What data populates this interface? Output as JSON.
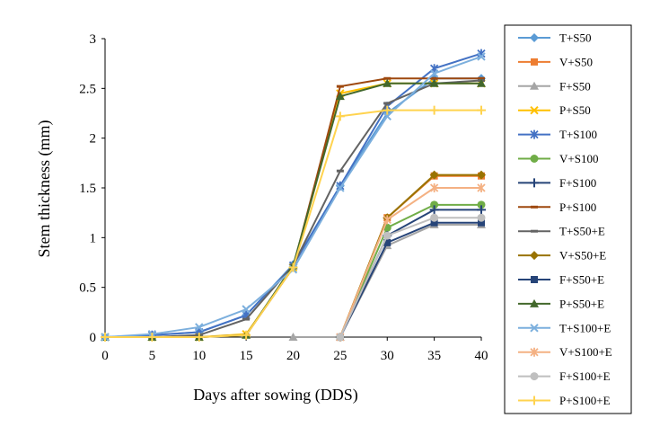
{
  "chart_data": {
    "type": "line",
    "title": "",
    "xlabel": "Days after sowing (DDS)",
    "ylabel": "Stem thickness (mm)",
    "x": [
      0,
      5,
      10,
      15,
      20,
      25,
      30,
      35,
      40
    ],
    "xlim": [
      0,
      40
    ],
    "ylim": [
      0,
      3
    ],
    "yticks": [
      "0",
      "0.5",
      "1",
      "1.5",
      "2",
      "2.5",
      "3"
    ],
    "xticks": [
      "0",
      "5",
      "10",
      "15",
      "20",
      "25",
      "30",
      "35",
      "40"
    ],
    "grid": false,
    "legend_position": "right",
    "series": [
      {
        "name": "T+S50",
        "color": "#5B9BD5",
        "marker": "diamond",
        "values": [
          0,
          0.02,
          0.05,
          0.22,
          0.73,
          1.52,
          2.25,
          2.6,
          2.6
        ]
      },
      {
        "name": "V+S50",
        "color": "#ED7D31",
        "marker": "square",
        "values": [
          null,
          null,
          null,
          null,
          null,
          0,
          1.2,
          1.62,
          1.62
        ]
      },
      {
        "name": "F+S50",
        "color": "#A5A5A5",
        "marker": "triangle",
        "values": [
          null,
          null,
          null,
          null,
          0,
          0,
          0.92,
          1.13,
          1.13
        ]
      },
      {
        "name": "P+S50",
        "color": "#FFC000",
        "marker": "x",
        "values": [
          0,
          0,
          0,
          0.03,
          0.7,
          2.45,
          2.55,
          2.55,
          2.55
        ]
      },
      {
        "name": "T+S100",
        "color": "#4472C4",
        "marker": "star",
        "values": [
          0,
          0.02,
          0.05,
          0.22,
          0.72,
          1.52,
          2.32,
          2.7,
          2.85
        ]
      },
      {
        "name": "V+S100",
        "color": "#70AD47",
        "marker": "circle",
        "values": [
          null,
          null,
          null,
          null,
          null,
          0,
          1.1,
          1.33,
          1.33
        ]
      },
      {
        "name": "F+S100",
        "color": "#264478",
        "marker": "plus",
        "values": [
          null,
          null,
          null,
          null,
          null,
          0,
          1.02,
          1.28,
          1.28
        ]
      },
      {
        "name": "P+S100",
        "color": "#9E480E",
        "marker": "dash",
        "values": [
          0,
          0,
          0,
          0.02,
          0.7,
          2.52,
          2.6,
          2.6,
          2.6
        ]
      },
      {
        "name": "T+S50+E",
        "color": "#636363",
        "marker": "dash",
        "values": [
          0,
          0,
          0.02,
          0.18,
          0.72,
          1.67,
          2.35,
          2.55,
          2.58
        ]
      },
      {
        "name": "V+S50+E",
        "color": "#997300",
        "marker": "diamond",
        "values": [
          null,
          null,
          null,
          null,
          null,
          0,
          1.2,
          1.63,
          1.63
        ]
      },
      {
        "name": "F+S50+E",
        "color": "#264478",
        "marker": "square",
        "values": [
          null,
          null,
          null,
          null,
          null,
          0,
          0.95,
          1.15,
          1.15
        ]
      },
      {
        "name": "P+S50+E",
        "color": "#43682B",
        "marker": "triangle",
        "values": [
          0,
          0,
          0,
          0.02,
          0.72,
          2.42,
          2.55,
          2.55,
          2.55
        ]
      },
      {
        "name": "T+S100+E",
        "color": "#7CAFDD",
        "marker": "x",
        "values": [
          0,
          0.03,
          0.1,
          0.28,
          0.68,
          1.5,
          2.22,
          2.65,
          2.82
        ]
      },
      {
        "name": "V+S100+E",
        "color": "#F4B183",
        "marker": "star",
        "values": [
          null,
          null,
          null,
          null,
          null,
          0,
          1.18,
          1.5,
          1.5
        ]
      },
      {
        "name": "F+S100+E",
        "color": "#BFBFBF",
        "marker": "circle",
        "values": [
          null,
          null,
          null,
          null,
          null,
          0,
          1.02,
          1.2,
          1.2
        ]
      },
      {
        "name": "P+S100+E",
        "color": "#FFD34F",
        "marker": "plus",
        "values": [
          0,
          0,
          0,
          0.02,
          0.7,
          2.22,
          2.28,
          2.28,
          2.28
        ]
      }
    ]
  }
}
